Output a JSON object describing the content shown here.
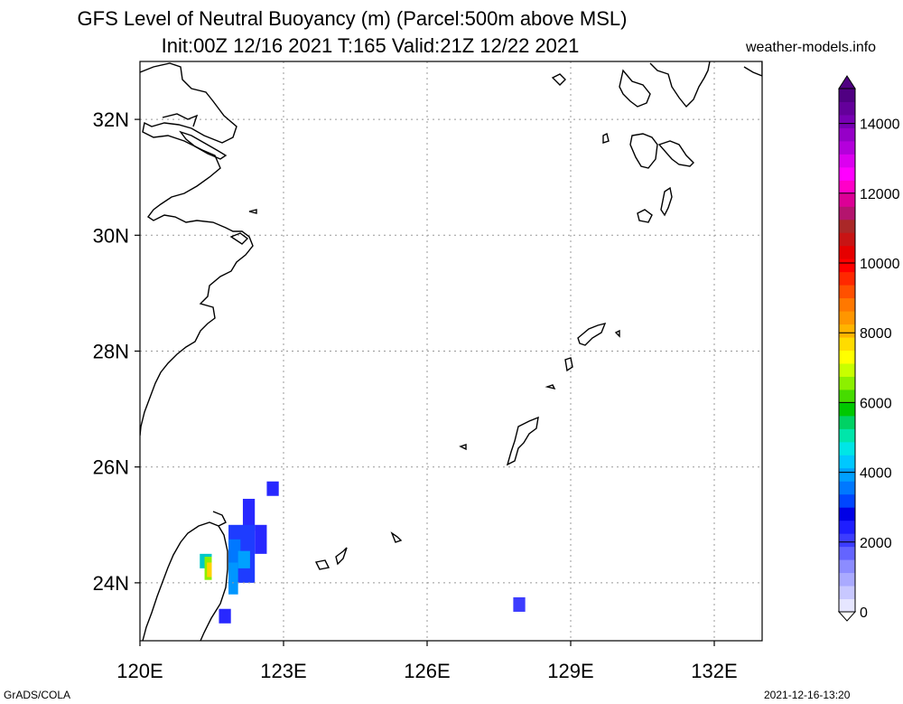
{
  "title_line1": "GFS Level of Neutral Buoyancy (m) (Parcel:500m above MSL)",
  "title_line2": "Init:00Z 12/16 2021 T:165 Valid:21Z 12/22 2021",
  "credit": "weather-models.info",
  "footer_left": "GrADS/COLA",
  "footer_right": "2021-12-16-13:20",
  "map": {
    "lon_range": [
      120,
      133
    ],
    "lat_range": [
      23,
      33
    ],
    "lon_ticks": [
      {
        "value": 120,
        "label": "120E"
      },
      {
        "value": 123,
        "label": "123E"
      },
      {
        "value": 126,
        "label": "126E"
      },
      {
        "value": 129,
        "label": "129E"
      },
      {
        "value": 132,
        "label": "132E"
      }
    ],
    "lat_ticks": [
      {
        "value": 24,
        "label": "24N"
      },
      {
        "value": 26,
        "label": "26N"
      },
      {
        "value": 28,
        "label": "28N"
      },
      {
        "value": 30,
        "label": "30N"
      },
      {
        "value": 32,
        "label": "32N"
      }
    ],
    "grid": true
  },
  "colorbar": {
    "min": 0,
    "max": 15000,
    "labels": [
      {
        "value": 0,
        "label": "0"
      },
      {
        "value": 2000,
        "label": "2000"
      },
      {
        "value": 4000,
        "label": "4000"
      },
      {
        "value": 6000,
        "label": "6000"
      },
      {
        "value": 8000,
        "label": "8000"
      },
      {
        "value": 10000,
        "label": "10000"
      },
      {
        "value": 12000,
        "label": "12000"
      },
      {
        "value": 14000,
        "label": "14000"
      }
    ],
    "colors": [
      "#e6e6ff",
      "#c8c8ff",
      "#aaaaff",
      "#8c8cff",
      "#6464ff",
      "#3c3cff",
      "#1e1eff",
      "#0000e6",
      "#0046ff",
      "#0078ff",
      "#00a0ff",
      "#00c8ff",
      "#00e6e6",
      "#00e6aa",
      "#00d264",
      "#00c800",
      "#46dc00",
      "#8cf000",
      "#c8ff00",
      "#ffff00",
      "#ffdc00",
      "#ffb400",
      "#ff9600",
      "#ff7800",
      "#ff5000",
      "#ff2800",
      "#ff0000",
      "#e60000",
      "#c81414",
      "#aa2828",
      "#b4146e",
      "#dc0096",
      "#ff00c8",
      "#ff00ff",
      "#dc00f0",
      "#b400dc",
      "#9600c8",
      "#7800b4",
      "#64009b",
      "#500082"
    ]
  },
  "cells": [
    {
      "lon": 121.25,
      "lat": 24.25,
      "lon2": 121.5,
      "lat2": 24.5,
      "color": "#00c8c8"
    },
    {
      "lon": 121.35,
      "lat": 24.05,
      "lon2": 121.5,
      "lat2": 24.45,
      "color": "#8cf000"
    },
    {
      "lon": 121.4,
      "lat": 24.1,
      "lon2": 121.5,
      "lat2": 24.35,
      "color": "#ffd200"
    },
    {
      "lon": 122.15,
      "lat": 24.9,
      "lon2": 122.4,
      "lat2": 25.45,
      "color": "#2828ff"
    },
    {
      "lon": 122.4,
      "lat": 24.5,
      "lon2": 122.65,
      "lat2": 25.0,
      "color": "#2828ff"
    },
    {
      "lon": 121.85,
      "lat": 24.0,
      "lon2": 122.4,
      "lat2": 25.0,
      "color": "#1e3cff"
    },
    {
      "lon": 121.85,
      "lat": 24.35,
      "lon2": 122.1,
      "lat2": 24.75,
      "color": "#0078ff"
    },
    {
      "lon": 121.85,
      "lat": 23.8,
      "lon2": 122.05,
      "lat2": 24.35,
      "color": "#0096ff"
    },
    {
      "lon": 122.05,
      "lat": 24.25,
      "lon2": 122.3,
      "lat2": 24.55,
      "color": "#00a0ff"
    },
    {
      "lon": 122.65,
      "lat": 25.5,
      "lon2": 122.9,
      "lat2": 25.75,
      "color": "#2828ff"
    },
    {
      "lon": 121.65,
      "lat": 23.3,
      "lon2": 121.9,
      "lat2": 23.55,
      "color": "#2828ff"
    },
    {
      "lon": 127.8,
      "lat": 23.5,
      "lon2": 128.05,
      "lat2": 23.75,
      "color": "#3c3cff"
    }
  ]
}
